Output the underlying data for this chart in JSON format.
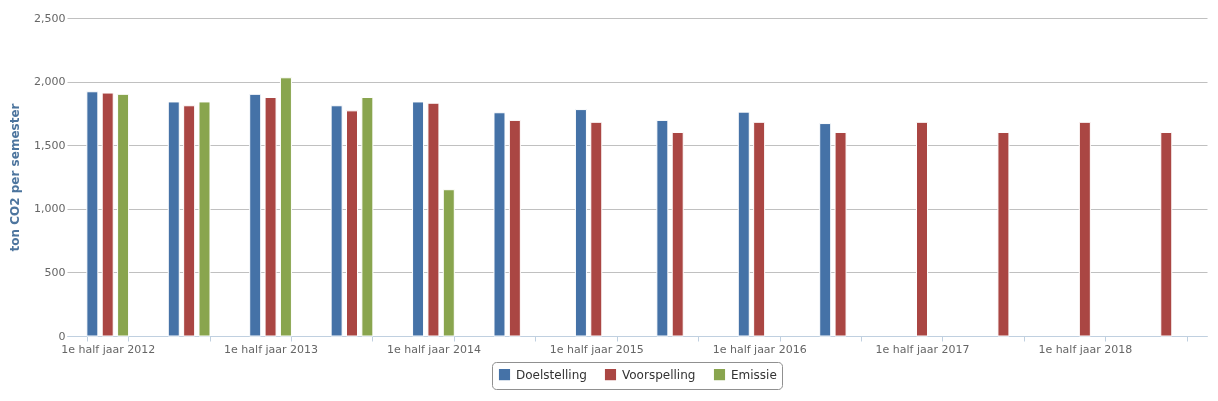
{
  "chart_data": {
    "type": "bar",
    "categories": [
      "1e half jaar 2012",
      null,
      "1e half jaar 2013",
      null,
      "1e half jaar 2014",
      null,
      "1e half jaar 2015",
      null,
      "1e half jaar 2016",
      null,
      "1e half jaar 2017",
      null,
      "1e half jaar 2018",
      null
    ],
    "series": [
      {
        "name": "Doelstelling",
        "color": "#4572a7",
        "values": [
          1920,
          1840,
          1900,
          1810,
          1840,
          1755,
          1780,
          1695,
          1760,
          1670,
          null,
          null,
          null,
          null
        ]
      },
      {
        "name": "Voorspelling",
        "color": "#aa4643",
        "values": [
          1910,
          1810,
          1875,
          1770,
          1830,
          1695,
          1680,
          1600,
          1680,
          1600,
          1680,
          1600,
          1680,
          1600
        ]
      },
      {
        "name": "Emissie",
        "color": "#89a54e",
        "values": [
          1900,
          1840,
          2030,
          1875,
          1150,
          null,
          null,
          null,
          null,
          null,
          null,
          null,
          null,
          null
        ]
      }
    ],
    "ylabel": "ton CO2 per semester",
    "ylim": [
      0,
      2500
    ],
    "yticks": [
      0,
      {
        "value": 500,
        "label": "500"
      },
      {
        "value": 1000,
        "label": "1,000"
      },
      {
        "value": 1500,
        "label": "1,500"
      },
      {
        "value": 2000,
        "label": "2,000"
      },
      {
        "value": 2500,
        "label": "2,500"
      }
    ],
    "grid": "y",
    "legend": "bottom"
  }
}
